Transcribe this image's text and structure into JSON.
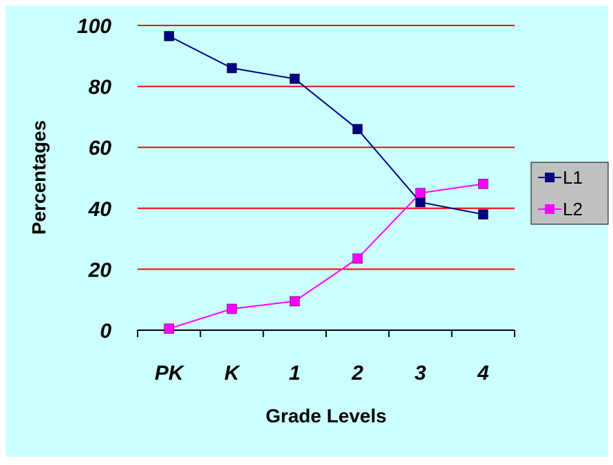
{
  "chart_data": {
    "type": "line",
    "title": "",
    "xlabel": "Grade Levels",
    "ylabel": "Percentages",
    "categories": [
      "PK",
      "K",
      "1",
      "2",
      "3",
      "4"
    ],
    "ylim": [
      0,
      100
    ],
    "yticks": [
      0,
      20,
      40,
      60,
      80,
      100
    ],
    "grid": true,
    "legend": "right",
    "series": [
      {
        "name": "L1",
        "values": [
          96.5,
          86,
          82.5,
          66,
          42,
          38
        ],
        "color": "#000080"
      },
      {
        "name": "L2",
        "values": [
          0.5,
          7,
          9.5,
          23.5,
          45,
          48
        ],
        "color": "#ff00ff"
      }
    ],
    "colors": {
      "background": "#ccffff",
      "gridlines": "#ff0000",
      "legend_background": "#c0c0c0"
    }
  }
}
